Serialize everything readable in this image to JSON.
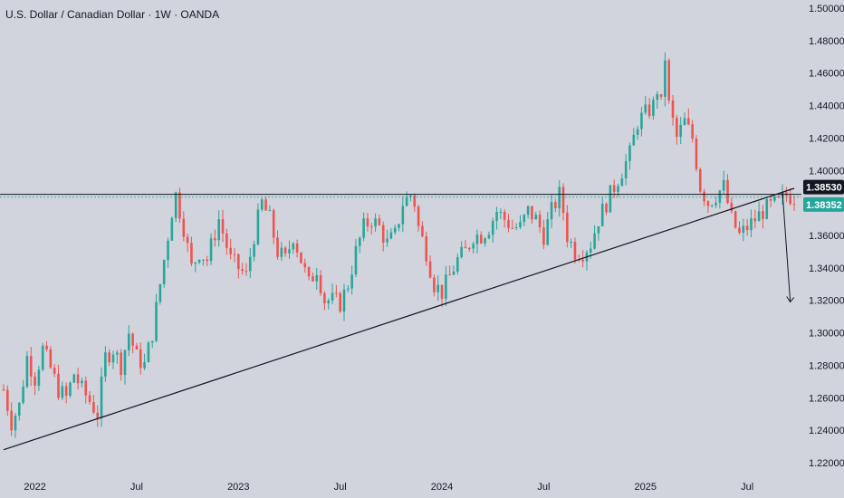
{
  "header": {
    "title": "U.S. Dollar / Canadian Dollar · 1W · OANDA"
  },
  "colors": {
    "background": "#d1d4dc",
    "up": "#26a69a",
    "down": "#ef5350",
    "line": "#131722",
    "level_tag": "#131722",
    "price_tag": "#26a69a"
  },
  "chart_data": {
    "type": "candlestick",
    "title": "U.S. Dollar / Canadian Dollar · 1W · OANDA",
    "ylim": [
      1.215,
      1.505
    ],
    "y_ticks": [
      "1.50000",
      "1.48000",
      "1.46000",
      "1.44000",
      "1.42000",
      "1.40000",
      "1.36000",
      "1.34000",
      "1.32000",
      "1.30000",
      "1.28000",
      "1.26000",
      "1.24000",
      "1.22000"
    ],
    "x_ticks": [
      "2022",
      "Jul",
      "2023",
      "Jul",
      "2024",
      "Jul",
      "2025",
      "Jul"
    ],
    "x_tick_weeks": [
      8,
      34,
      60,
      86,
      112,
      138,
      164,
      190
    ],
    "horizontal_levels": [
      {
        "value": 1.3853,
        "label": "1.38530"
      },
      {
        "value": 1.38352,
        "label": "1.38352"
      }
    ],
    "trendline": {
      "from": {
        "week": 0,
        "price": 1.228
      },
      "to": {
        "week": 202,
        "price": 1.389
      }
    },
    "projection": {
      "from": {
        "week": 199,
        "price": 1.387
      },
      "to": {
        "week": 201,
        "price": 1.319
      }
    },
    "anchors": [
      [
        0,
        1.265
      ],
      [
        2,
        1.245
      ],
      [
        4,
        1.255
      ],
      [
        6,
        1.285
      ],
      [
        8,
        1.272
      ],
      [
        10,
        1.29
      ],
      [
        12,
        1.278
      ],
      [
        14,
        1.265
      ],
      [
        16,
        1.26
      ],
      [
        18,
        1.275
      ],
      [
        20,
        1.265
      ],
      [
        22,
        1.258
      ],
      [
        24,
        1.25
      ],
      [
        26,
        1.285
      ],
      [
        28,
        1.29
      ],
      [
        30,
        1.28
      ],
      [
        32,
        1.3
      ],
      [
        34,
        1.285
      ],
      [
        36,
        1.28
      ],
      [
        38,
        1.3
      ],
      [
        40,
        1.33
      ],
      [
        42,
        1.36
      ],
      [
        43,
        1.375
      ],
      [
        44,
        1.385
      ],
      [
        46,
        1.365
      ],
      [
        48,
        1.34
      ],
      [
        50,
        1.35
      ],
      [
        52,
        1.345
      ],
      [
        55,
        1.37
      ],
      [
        58,
        1.345
      ],
      [
        60,
        1.34
      ],
      [
        62,
        1.335
      ],
      [
        64,
        1.36
      ],
      [
        66,
        1.38
      ],
      [
        68,
        1.37
      ],
      [
        70,
        1.35
      ],
      [
        72,
        1.345
      ],
      [
        74,
        1.36
      ],
      [
        76,
        1.345
      ],
      [
        78,
        1.33
      ],
      [
        80,
        1.34
      ],
      [
        82,
        1.32
      ],
      [
        84,
        1.32
      ],
      [
        86,
        1.318
      ],
      [
        88,
        1.33
      ],
      [
        90,
        1.35
      ],
      [
        92,
        1.365
      ],
      [
        94,
        1.37
      ],
      [
        96,
        1.365
      ],
      [
        98,
        1.355
      ],
      [
        100,
        1.36
      ],
      [
        102,
        1.38
      ],
      [
        104,
        1.385
      ],
      [
        105,
        1.38
      ],
      [
        106,
        1.365
      ],
      [
        108,
        1.35
      ],
      [
        110,
        1.33
      ],
      [
        112,
        1.325
      ],
      [
        114,
        1.335
      ],
      [
        116,
        1.345
      ],
      [
        118,
        1.35
      ],
      [
        120,
        1.36
      ],
      [
        122,
        1.36
      ],
      [
        124,
        1.365
      ],
      [
        126,
        1.375
      ],
      [
        128,
        1.37
      ],
      [
        130,
        1.365
      ],
      [
        132,
        1.365
      ],
      [
        134,
        1.375
      ],
      [
        136,
        1.37
      ],
      [
        138,
        1.36
      ],
      [
        140,
        1.375
      ],
      [
        142,
        1.385
      ],
      [
        143,
        1.375
      ],
      [
        144,
        1.36
      ],
      [
        146,
        1.35
      ],
      [
        148,
        1.35
      ],
      [
        150,
        1.355
      ],
      [
        152,
        1.37
      ],
      [
        154,
        1.38
      ],
      [
        156,
        1.39
      ],
      [
        158,
        1.4
      ],
      [
        160,
        1.41
      ],
      [
        162,
        1.43
      ],
      [
        164,
        1.435
      ],
      [
        166,
        1.44
      ],
      [
        167,
        1.45
      ],
      [
        168,
        1.44
      ],
      [
        169,
        1.47
      ],
      [
        170,
        1.44
      ],
      [
        172,
        1.42
      ],
      [
        174,
        1.43
      ],
      [
        176,
        1.42
      ],
      [
        178,
        1.39
      ],
      [
        180,
        1.38
      ],
      [
        182,
        1.385
      ],
      [
        184,
        1.39
      ],
      [
        186,
        1.37
      ],
      [
        188,
        1.36
      ],
      [
        190,
        1.365
      ],
      [
        192,
        1.37
      ],
      [
        194,
        1.375
      ],
      [
        196,
        1.378
      ],
      [
        198,
        1.38
      ],
      [
        200,
        1.385
      ],
      [
        202,
        1.3835
      ]
    ],
    "x_range_weeks": [
      0,
      202
    ],
    "wick": 0.006
  }
}
